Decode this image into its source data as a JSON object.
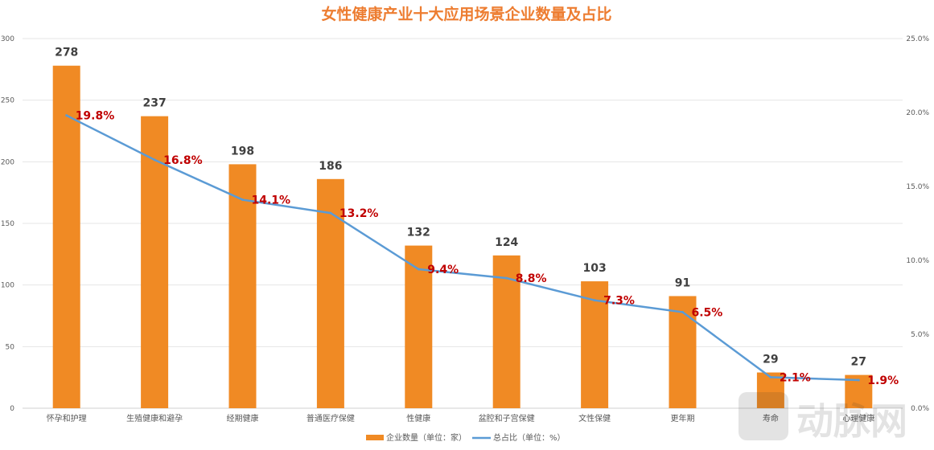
{
  "chart_data": {
    "type": "bar+line",
    "title": "女性健康产业十大应用场景企业数量及占比",
    "categories": [
      "怀孕和护理",
      "生殖健康和避孕",
      "经期健康",
      "普通医疗保健",
      "性健康",
      "盆腔和子宫保健",
      "文性保健",
      "更年期",
      "寿命",
      "心理健康"
    ],
    "series": [
      {
        "name": "企业数量（单位：家）",
        "type": "bar",
        "axis": "left",
        "color": "#F08A24",
        "values": [
          278,
          237,
          198,
          186,
          132,
          124,
          103,
          91,
          29,
          27
        ],
        "labels": [
          "278",
          "237",
          "198",
          "186",
          "132",
          "124",
          "103",
          "91",
          "29",
          "27"
        ]
      },
      {
        "name": "总占比（单位：%）",
        "type": "line",
        "axis": "right",
        "color": "#5B9BD5",
        "values": [
          19.8,
          16.8,
          14.1,
          13.2,
          9.4,
          8.8,
          7.3,
          6.5,
          2.1,
          1.9
        ],
        "labels": [
          "19.8%",
          "16.8%",
          "14.1%",
          "13.2%",
          "9.4%",
          "8.8%",
          "7.3%",
          "6.5%",
          "2.1%",
          "1.9%"
        ]
      }
    ],
    "y_left": {
      "range": [
        0,
        300
      ],
      "ticks": [
        "0",
        "50",
        "100",
        "150",
        "200",
        "250",
        "300"
      ]
    },
    "y_right": {
      "range": [
        0,
        25
      ],
      "ticks": [
        "0.0%",
        "5.0%",
        "10.0%",
        "15.0%",
        "20.0%",
        "25.0%"
      ]
    },
    "grid": true,
    "legend": "bottom"
  },
  "watermark": "动脉网"
}
